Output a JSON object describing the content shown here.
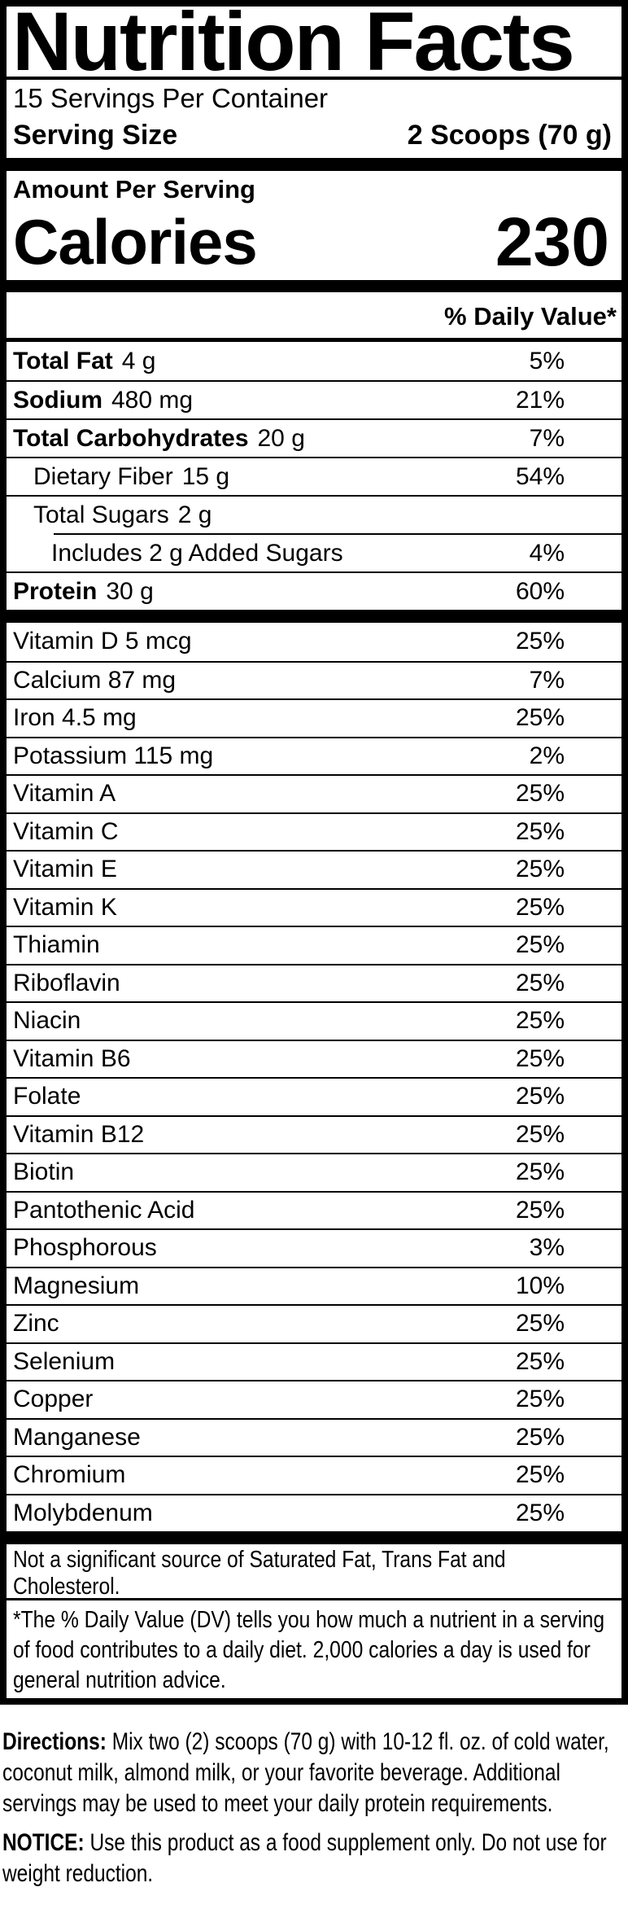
{
  "label": {
    "title": "Nutrition Facts",
    "servings_per_container": "15 Servings Per Container",
    "serving_size_label": "Serving Size",
    "serving_size_value": "2 Scoops (70 g)",
    "amount_per_serving": "Amount Per Serving",
    "calories_label": "Calories",
    "calories_value": "230",
    "daily_value_header": "% Daily Value*",
    "main_rows": [
      {
        "name": "Total Fat",
        "amount": "4 g",
        "dv": "5%",
        "bold": true,
        "indent": 0
      },
      {
        "name": "Sodium",
        "amount": "480 mg",
        "dv": "21%",
        "bold": true,
        "indent": 0
      },
      {
        "name": "Total Carbohydrates",
        "amount": "20 g",
        "dv": "7%",
        "bold": true,
        "indent": 0
      },
      {
        "name": "Dietary Fiber",
        "amount": "15 g",
        "dv": "54%",
        "bold": false,
        "indent": 1
      },
      {
        "name": "Total Sugars",
        "amount": "2 g",
        "dv": "",
        "bold": false,
        "indent": 1
      },
      {
        "name": "Includes 2 g Added Sugars",
        "amount": "",
        "dv": "4%",
        "bold": false,
        "indent": 2,
        "partial": true
      },
      {
        "name": "Protein",
        "amount": "30 g",
        "dv": "60%",
        "bold": true,
        "indent": 0
      }
    ],
    "micronutrient_rows": [
      {
        "name": "Vitamin D 5 mcg",
        "dv": "25%"
      },
      {
        "name": "Calcium 87 mg",
        "dv": "7%"
      },
      {
        "name": "Iron 4.5 mg",
        "dv": "25%"
      },
      {
        "name": "Potassium 115 mg",
        "dv": "2%"
      },
      {
        "name": "Vitamin A",
        "dv": "25%"
      },
      {
        "name": "Vitamin C",
        "dv": "25%"
      },
      {
        "name": "Vitamin E",
        "dv": "25%"
      },
      {
        "name": "Vitamin K",
        "dv": "25%"
      },
      {
        "name": "Thiamin",
        "dv": "25%"
      },
      {
        "name": "Riboflavin",
        "dv": "25%"
      },
      {
        "name": "Niacin",
        "dv": "25%"
      },
      {
        "name": "Vitamin B6",
        "dv": "25%"
      },
      {
        "name": "Folate",
        "dv": "25%"
      },
      {
        "name": "Vitamin B12",
        "dv": "25%"
      },
      {
        "name": "Biotin",
        "dv": "25%"
      },
      {
        "name": "Pantothenic Acid",
        "dv": "25%"
      },
      {
        "name": "Phosphorous",
        "dv": "3%"
      },
      {
        "name": "Magnesium",
        "dv": "10%"
      },
      {
        "name": "Zinc",
        "dv": "25%"
      },
      {
        "name": "Selenium",
        "dv": "25%"
      },
      {
        "name": "Copper",
        "dv": "25%"
      },
      {
        "name": "Manganese",
        "dv": "25%"
      },
      {
        "name": "Chromium",
        "dv": "25%"
      },
      {
        "name": "Molybdenum",
        "dv": "25%"
      }
    ],
    "not_significant_note": "Not a significant source of Saturated Fat, Trans Fat and Cholesterol.",
    "footnote": "*The % Daily Value (DV) tells you how much a nutrient in a serving of food contributes to a daily diet. 2,000 calories a day is used for general nutrition advice."
  },
  "supplement_info": {
    "directions_label": "Directions:",
    "directions_text": "Mix two (2) scoops (70 g) with 10-12 fl. oz. of cold water, coconut milk, almond milk, or your favorite beverage. Additional servings may be used to meet your daily protein requirements.",
    "notice_label": "NOTICE:",
    "notice_text": "Use this product as a food supplement only. Do not use for weight reduction."
  },
  "colors": {
    "ink": "#000000",
    "background": "#ffffff"
  }
}
